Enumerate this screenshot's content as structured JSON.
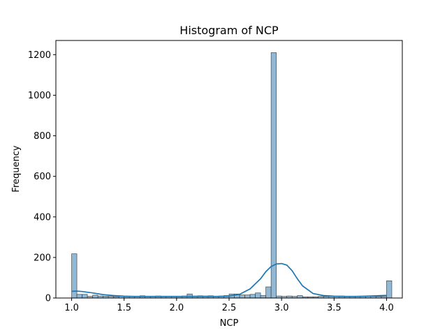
{
  "chart_data": {
    "type": "bar",
    "title": "Histogram of NCP",
    "xlabel": "NCP",
    "ylabel": "Frequency",
    "xlim": [
      0.85,
      4.15
    ],
    "ylim": [
      0,
      1270
    ],
    "xticks": [
      1.0,
      1.5,
      2.0,
      2.5,
      3.0,
      3.5,
      4.0
    ],
    "xtick_labels": [
      "1.0",
      "1.5",
      "2.0",
      "2.5",
      "3.0",
      "3.5",
      "4.0"
    ],
    "yticks": [
      0,
      200,
      400,
      600,
      800,
      1000,
      1200
    ],
    "ytick_labels": [
      "0",
      "200",
      "400",
      "600",
      "800",
      "1000",
      "1200"
    ],
    "bin_start": 1.0,
    "bin_width": 0.05,
    "values": [
      218,
      18,
      18,
      8,
      14,
      10,
      9,
      8,
      7,
      8,
      7,
      9,
      8,
      11,
      8,
      9,
      10,
      8,
      8,
      9,
      9,
      10,
      20,
      10,
      11,
      10,
      11,
      8,
      10,
      12,
      20,
      20,
      15,
      15,
      18,
      25,
      12,
      55,
      1210,
      10,
      8,
      10,
      8,
      12,
      6,
      6,
      6,
      8,
      8,
      8,
      8,
      10,
      8,
      8,
      8,
      8,
      8,
      8,
      8,
      8,
      85
    ],
    "kde": {
      "x": [
        1.0,
        1.05,
        1.1,
        1.2,
        1.3,
        1.4,
        1.5,
        1.6,
        1.8,
        2.0,
        2.2,
        2.4,
        2.5,
        2.6,
        2.7,
        2.8,
        2.85,
        2.9,
        2.95,
        3.0,
        3.05,
        3.1,
        3.15,
        3.2,
        3.3,
        3.4,
        3.5,
        3.6,
        3.7,
        3.8,
        3.9,
        3.95,
        4.0
      ],
      "y": [
        33,
        34,
        32,
        25,
        17,
        12,
        9,
        8,
        8,
        8,
        8,
        8,
        10,
        18,
        45,
        95,
        130,
        155,
        168,
        170,
        162,
        135,
        95,
        60,
        22,
        12,
        9,
        8,
        8,
        9,
        11,
        12,
        13
      ]
    },
    "colors": {
      "bar_fill": "#91b9d6",
      "bar_edge": "#333333",
      "kde_line": "#1f77b4"
    }
  }
}
